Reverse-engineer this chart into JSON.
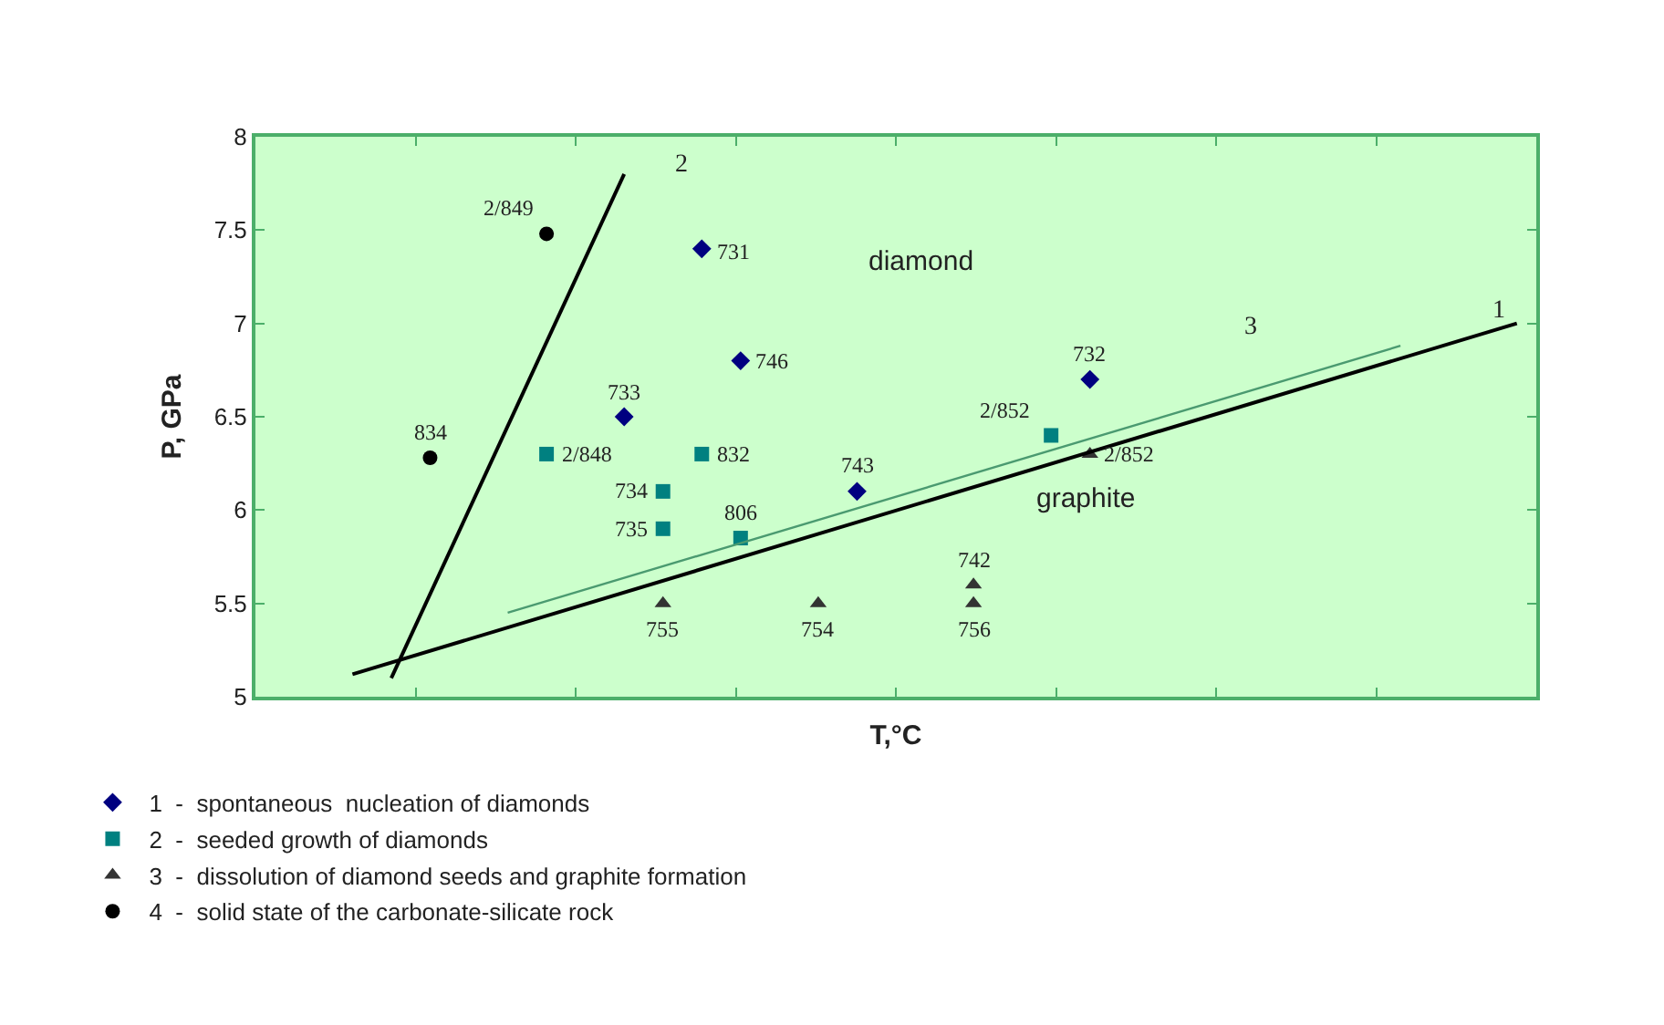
{
  "chart_data": {
    "type": "scatter",
    "xlabel": "T,°C",
    "ylabel": "P, GPa",
    "categories": [
      null,
      null,
      null,
      null,
      null,
      null,
      null,
      null,
      null,
      null,
      null,
      null,
      null,
      null,
      null,
      null,
      null,
      null,
      null,
      null,
      null,
      null,
      null,
      null,
      null,
      null,
      null,
      null,
      null,
      null,
      null,
      null,
      null
    ],
    "ylim": [
      5,
      8
    ],
    "yticks": [
      5,
      5.5,
      6,
      6.5,
      7,
      7.5,
      8
    ],
    "legend": "bottom",
    "series": [
      {
        "name": "1  -  spontaneous  nucleation of diamonds",
        "marker": "diamond",
        "color": "#000080",
        "values": [
          null,
          null,
          null,
          null,
          null,
          null,
          null,
          null,
          null,
          6.5,
          null,
          7.4,
          6.8,
          null,
          null,
          6.1,
          null,
          null,
          null,
          null,
          null,
          6.7,
          null,
          null,
          null,
          null,
          null,
          null,
          null,
          null,
          null,
          null,
          null
        ]
      },
      {
        "name": "2  -  seeded growth of diamonds",
        "marker": "square",
        "color": "#008080",
        "values": [
          null,
          null,
          null,
          null,
          null,
          null,
          null,
          6.3,
          null,
          null,
          6.1,
          6.3,
          5.85,
          null,
          null,
          null,
          null,
          null,
          null,
          null,
          6.4,
          null,
          null,
          null,
          null,
          null,
          null,
          null,
          null,
          null,
          null,
          null,
          null
        ]
      },
      {
        "marker": "square",
        "color": "#008080",
        "values": [
          null,
          null,
          null,
          null,
          null,
          null,
          null,
          null,
          null,
          null,
          5.9,
          null,
          null,
          null,
          null,
          null,
          null,
          null,
          null,
          null,
          null,
          null,
          null,
          null,
          null,
          null,
          null,
          null,
          null,
          null,
          null,
          null,
          null
        ]
      },
      {
        "name": "3  -  dissolution of diamond seeds and graphite formation",
        "marker": "triangle",
        "color": "#333333",
        "values": [
          null,
          null,
          null,
          null,
          null,
          null,
          null,
          null,
          null,
          null,
          5.5,
          null,
          null,
          null,
          5.5,
          null,
          null,
          null,
          5.6,
          null,
          null,
          6.3,
          null,
          null,
          null,
          null,
          null,
          null,
          null,
          null,
          null,
          null,
          null
        ]
      },
      {
        "marker": "triangle",
        "color": "#333333",
        "values": [
          null,
          null,
          null,
          null,
          null,
          null,
          null,
          null,
          null,
          null,
          null,
          null,
          null,
          null,
          null,
          null,
          null,
          null,
          5.5,
          null,
          null,
          null,
          null,
          null,
          null,
          null,
          null,
          null,
          null,
          null,
          null,
          null,
          null
        ]
      },
      {
        "name": "4  -  solid state of the carbonate-silicate rock",
        "marker": "circle",
        "color": "#000000",
        "values": [
          null,
          null,
          null,
          null,
          6.28,
          null,
          null,
          7.48,
          null,
          null,
          null,
          null,
          null,
          null,
          null,
          null,
          null,
          null,
          null,
          null,
          null,
          null,
          null,
          null,
          null,
          null,
          null,
          null,
          null,
          null,
          null,
          null,
          null
        ]
      },
      {
        "type": "line",
        "color": "#000000",
        "line_style": "solid",
        "values": [
          null,
          null,
          5.12,
          null,
          null,
          null,
          null,
          null,
          null,
          null,
          null,
          null,
          null,
          null,
          null,
          null,
          null,
          null,
          null,
          null,
          null,
          null,
          null,
          null,
          null,
          null,
          null,
          null,
          null,
          null,
          null,
          null,
          7.0
        ]
      },
      {
        "type": "line",
        "color": "#000000",
        "line_style": "solid",
        "values": [
          null,
          null,
          null,
          5.1,
          null,
          null,
          null,
          null,
          null,
          7.8,
          null,
          null,
          null,
          null,
          null,
          null,
          null,
          null,
          null,
          null,
          null,
          null,
          null,
          null,
          null,
          null,
          null,
          null,
          null,
          null,
          null,
          null,
          null
        ]
      },
      {
        "type": "line",
        "color": "#4a9a70",
        "line_style": "solid",
        "values": [
          null,
          null,
          null,
          null,
          null,
          null,
          5.45,
          null,
          null,
          null,
          null,
          null,
          null,
          null,
          null,
          null,
          null,
          null,
          null,
          null,
          null,
          null,
          null,
          null,
          null,
          null,
          null,
          null,
          null,
          6.88,
          null,
          null,
          null
        ]
      }
    ],
    "annotations": [
      "diamond",
      "graphite",
      "1",
      "2",
      "3",
      "733",
      "731",
      "746",
      "743",
      "732",
      "2/848",
      "734",
      "832",
      "806",
      "2/852",
      "735",
      "755",
      "754",
      "742",
      "2/852",
      "756",
      "834",
      "2/849"
    ]
  }
}
